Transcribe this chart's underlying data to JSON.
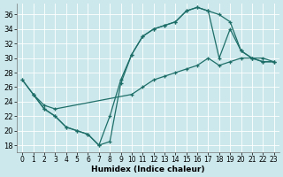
{
  "xlabel": "Humidex (Indice chaleur)",
  "xlim": [
    -0.5,
    23.5
  ],
  "ylim": [
    17,
    37.5
  ],
  "xticks": [
    0,
    1,
    2,
    3,
    4,
    5,
    6,
    7,
    8,
    9,
    10,
    11,
    12,
    13,
    14,
    15,
    16,
    17,
    18,
    19,
    20,
    21,
    22,
    23
  ],
  "yticks": [
    18,
    20,
    22,
    24,
    26,
    28,
    30,
    32,
    34,
    36
  ],
  "bg_color": "#cce8ec",
  "line_color": "#1e6e68",
  "line1_x": [
    0,
    1,
    2,
    3,
    4,
    5,
    6,
    7,
    8,
    9,
    10,
    11,
    12,
    13,
    14,
    15,
    16,
    17,
    18,
    19,
    20,
    21,
    22,
    23
  ],
  "line1_y": [
    27,
    25,
    23,
    22,
    20.5,
    20,
    19.5,
    18,
    18.5,
    26.5,
    30.5,
    33,
    34,
    34.5,
    35,
    36.5,
    37,
    36.5,
    36,
    35,
    31,
    30,
    29.5,
    29.5
  ],
  "line2_x": [
    0,
    1,
    2,
    3,
    4,
    5,
    6,
    7,
    8,
    9,
    10,
    11,
    12,
    13,
    14,
    15,
    16,
    17,
    18,
    19,
    20,
    21,
    22,
    23
  ],
  "line2_y": [
    27,
    25,
    23,
    22,
    20.5,
    20,
    19.5,
    18,
    22,
    27,
    30.5,
    33,
    34,
    34.5,
    35,
    36.5,
    37,
    36.5,
    30,
    34,
    31,
    30,
    29.5,
    29.5
  ],
  "line3_x": [
    1,
    2,
    3,
    10,
    11,
    12,
    13,
    14,
    15,
    16,
    17,
    18,
    19,
    20,
    21,
    22,
    23
  ],
  "line3_y": [
    25,
    23.5,
    23,
    25,
    26,
    27,
    27.5,
    28,
    28.5,
    29,
    30,
    29,
    29.5,
    30,
    30,
    30,
    29.5
  ]
}
